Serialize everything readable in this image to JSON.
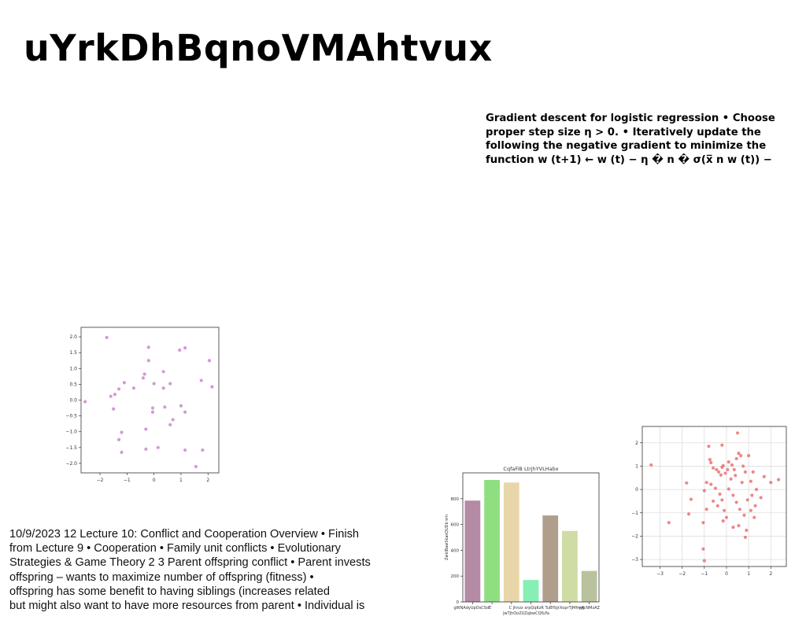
{
  "slide": {
    "title": "uYrkDhBqnoVMAhtvux"
  },
  "gradient_text": {
    "lines": [
      "Gradient descent for logistic regression • Choose",
      "proper step size η > 0. • Iteratively update the",
      "following the negative gradient to minimize the",
      "function w (t+1) ← w (t) − η � n � σ(x̅ n w (t)) −"
    ]
  },
  "lecture_text": {
    "lines": [
      "10/9/2023 12 Lecture 10: Conflict and Cooperation Overview • Finish",
      "from Lecture 9 • Cooperation • Family unit conflicts • Evolutionary",
      "Strategies & Game Theory 2 3 Parent offspring conflict • Parent invests",
      "offspring – wants to maximize number of offspring (fitness) •",
      "offspring has some benefit to having siblings (increases related",
      "but might also want to have more resources from parent • Individual is"
    ]
  },
  "chart_data": [
    {
      "type": "scatter",
      "color": "#c77fcf",
      "xlim": [
        -2.7,
        2.4
      ],
      "ylim": [
        -2.3,
        2.3
      ],
      "xticks": [
        "−2",
        "−1",
        "0",
        "1",
        "2"
      ],
      "yticks": [
        "2.0",
        "1.5",
        "1.0",
        "0.5",
        "0.0",
        "−0.5",
        "−1.0",
        "−1.5",
        "−2.0"
      ],
      "points": [
        [
          -1.75,
          1.98
        ],
        [
          -2.55,
          -0.05
        ],
        [
          -0.2,
          1.67
        ],
        [
          -0.2,
          1.25
        ],
        [
          0.95,
          1.58
        ],
        [
          1.15,
          1.65
        ],
        [
          2.05,
          1.25
        ],
        [
          2.15,
          0.42
        ],
        [
          1.75,
          0.62
        ],
        [
          0.35,
          0.9
        ],
        [
          0.6,
          0.52
        ],
        [
          0.0,
          0.52
        ],
        [
          0.35,
          0.38
        ],
        [
          -0.4,
          0.7
        ],
        [
          -0.35,
          0.82
        ],
        [
          -0.75,
          0.38
        ],
        [
          -1.1,
          0.55
        ],
        [
          -1.3,
          0.35
        ],
        [
          -1.45,
          0.18
        ],
        [
          -1.6,
          0.12
        ],
        [
          -1.5,
          -0.28
        ],
        [
          -0.05,
          -0.25
        ],
        [
          -0.05,
          -0.38
        ],
        [
          0.4,
          -0.22
        ],
        [
          1.0,
          -0.18
        ],
        [
          1.15,
          -0.38
        ],
        [
          0.7,
          -0.62
        ],
        [
          0.6,
          -0.78
        ],
        [
          -0.3,
          -0.92
        ],
        [
          -1.2,
          -1.02
        ],
        [
          -1.3,
          -1.25
        ],
        [
          -1.2,
          -1.65
        ],
        [
          -0.3,
          -1.55
        ],
        [
          0.15,
          -1.5
        ],
        [
          1.15,
          -1.58
        ],
        [
          1.8,
          -1.58
        ],
        [
          1.55,
          -2.1
        ]
      ]
    },
    {
      "type": "bar",
      "title": "CqfaFiB LtrjhYVLHabx",
      "ylabel": "ZwklBawSkasQUDb km",
      "xlabel_lines": [
        "C jhnzz  xrpQqKzR TuBYbJrXoprTjMfmyJ",
        "JwTjhOoZUZqbwCQfLPa"
      ],
      "categories": [
        "gWNAdyUpOsCSdE",
        "",
        "",
        "",
        "",
        "",
        "yAcNMzAZ"
      ],
      "values": [
        785,
        945,
        925,
        170,
        670,
        550,
        240
      ],
      "colors": [
        "#b48aa4",
        "#8fdf80",
        "#e8d6a8",
        "#86f0b4",
        "#b09e8c",
        "#cfdca4",
        "#b8c29e"
      ],
      "ylim": [
        0,
        1000
      ],
      "yticks": [
        "0",
        "200",
        "400",
        "600",
        "800"
      ]
    },
    {
      "type": "scatter",
      "color": "#e86a6a",
      "grid": true,
      "xlim": [
        -3.8,
        2.7
      ],
      "ylim": [
        -3.3,
        2.7
      ],
      "xticks": [
        "−3",
        "−2",
        "−1",
        "0",
        "1",
        "2"
      ],
      "yticks": [
        "2",
        "1",
        "0",
        "−1",
        "−2",
        "−3"
      ],
      "points": [
        [
          -3.4,
          1.05
        ],
        [
          -2.6,
          -1.42
        ],
        [
          -1.7,
          -1.05
        ],
        [
          -1.6,
          -0.42
        ],
        [
          -1.8,
          0.28
        ],
        [
          -1.05,
          -1.42
        ],
        [
          -1.05,
          -2.55
        ],
        [
          -1.0,
          -3.05
        ],
        [
          -0.9,
          -0.85
        ],
        [
          -0.9,
          0.3
        ],
        [
          -0.75,
          1.28
        ],
        [
          -0.7,
          1.15
        ],
        [
          -0.6,
          0.92
        ],
        [
          -0.45,
          0.85
        ],
        [
          -0.35,
          0.75
        ],
        [
          -0.25,
          0.62
        ],
        [
          -0.2,
          0.95
        ],
        [
          -0.15,
          1.02
        ],
        [
          -0.05,
          0.7
        ],
        [
          0.05,
          0.85
        ],
        [
          0.1,
          1.18
        ],
        [
          0.25,
          1.05
        ],
        [
          0.35,
          0.85
        ],
        [
          0.45,
          1.32
        ],
        [
          0.5,
          2.42
        ],
        [
          0.55,
          1.55
        ],
        [
          0.65,
          1.45
        ],
        [
          0.75,
          1.0
        ],
        [
          0.85,
          0.75
        ],
        [
          1.0,
          1.45
        ],
        [
          1.1,
          0.35
        ],
        [
          1.2,
          0.75
        ],
        [
          1.35,
          0.0
        ],
        [
          1.55,
          -0.35
        ],
        [
          1.7,
          0.55
        ],
        [
          2.0,
          0.3
        ],
        [
          2.35,
          0.42
        ],
        [
          -0.7,
          0.22
        ],
        [
          -0.5,
          0.05
        ],
        [
          -0.3,
          -0.2
        ],
        [
          -0.2,
          -0.45
        ],
        [
          -0.6,
          -0.5
        ],
        [
          -0.4,
          -0.7
        ],
        [
          -0.1,
          -0.9
        ],
        [
          0.1,
          0.02
        ],
        [
          0.3,
          -0.25
        ],
        [
          0.45,
          -0.55
        ],
        [
          0.6,
          -0.85
        ],
        [
          0.8,
          -1.1
        ],
        [
          0.9,
          -1.75
        ],
        [
          0.55,
          -1.55
        ],
        [
          0.3,
          -1.62
        ],
        [
          0.0,
          -1.2
        ],
        [
          -0.15,
          -1.35
        ],
        [
          0.95,
          -0.45
        ],
        [
          1.1,
          -0.9
        ],
        [
          1.25,
          -1.2
        ],
        [
          1.3,
          -0.7
        ],
        [
          0.2,
          0.45
        ],
        [
          0.7,
          0.3
        ],
        [
          -0.8,
          1.85
        ],
        [
          -0.2,
          1.9
        ],
        [
          0.85,
          -2.05
        ],
        [
          1.15,
          -0.25
        ],
        [
          -1.0,
          -0.05
        ],
        [
          0.4,
          0.6
        ]
      ]
    }
  ]
}
